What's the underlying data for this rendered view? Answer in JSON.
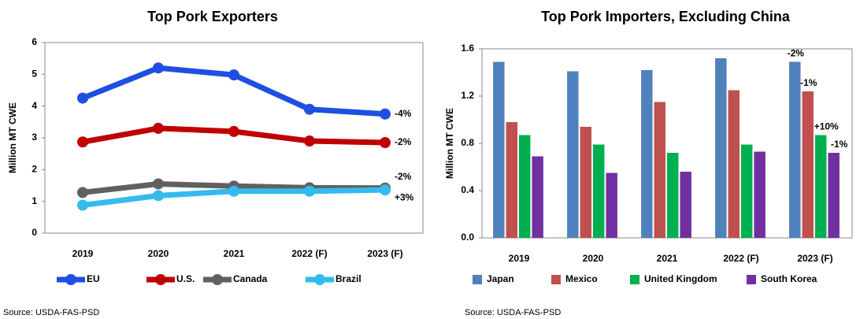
{
  "chart_data": [
    {
      "type": "line",
      "title": "Top Pork Exporters",
      "y_label": "Million MT CWE",
      "categories": [
        "2019",
        "2020",
        "2021",
        "2022 (F)",
        "2023 (F)"
      ],
      "ylim": [
        0,
        6
      ],
      "yticks": [
        0,
        1,
        2,
        3,
        4,
        5,
        6
      ],
      "series": [
        {
          "name": "EU",
          "color": "#1f4fe0",
          "values": [
            4.25,
            5.2,
            4.98,
            3.9,
            3.75
          ],
          "change_label": "-4%"
        },
        {
          "name": "U.S.",
          "color": "#c00000",
          "values": [
            2.87,
            3.3,
            3.2,
            2.9,
            2.85
          ],
          "change_label": "-2%"
        },
        {
          "name": "Canada",
          "color": "#606060",
          "values": [
            1.28,
            1.55,
            1.48,
            1.43,
            1.42
          ],
          "change_label": "-2%"
        },
        {
          "name": "Brazil",
          "color": "#33bbee",
          "values": [
            0.88,
            1.18,
            1.32,
            1.32,
            1.36
          ],
          "change_label": "+3%"
        }
      ],
      "source": "Source:  USDA-FAS-PSD"
    },
    {
      "type": "bar",
      "title": "Top Pork Importers, Excluding China",
      "y_label": "Million MT CWE",
      "categories": [
        "2019",
        "2020",
        "2021",
        "2022 (F)",
        "2023 (F)"
      ],
      "ylim": [
        0,
        1.6
      ],
      "yticks": [
        {
          "value": 0,
          "label": "0.0"
        },
        0.4,
        0.8,
        1.2,
        1.6
      ],
      "series": [
        {
          "name": "Japan",
          "color": "#4f81bd",
          "values": [
            1.49,
            1.41,
            1.42,
            1.52,
            1.49
          ],
          "change_label": "-2%"
        },
        {
          "name": "Mexico",
          "color": "#c0504d",
          "values": [
            0.98,
            0.94,
            1.15,
            1.25,
            1.24
          ],
          "change_label": "-1%"
        },
        {
          "name": "United Kingdom",
          "color": "#00b050",
          "values": [
            0.87,
            0.79,
            0.72,
            0.79,
            0.87
          ],
          "change_label": "+10%"
        },
        {
          "name": "South Korea",
          "color": "#7030a0",
          "values": [
            0.69,
            0.55,
            0.56,
            0.73,
            0.72
          ],
          "change_label": "-1%"
        }
      ],
      "source": "Source:  USDA-FAS-PSD"
    }
  ]
}
